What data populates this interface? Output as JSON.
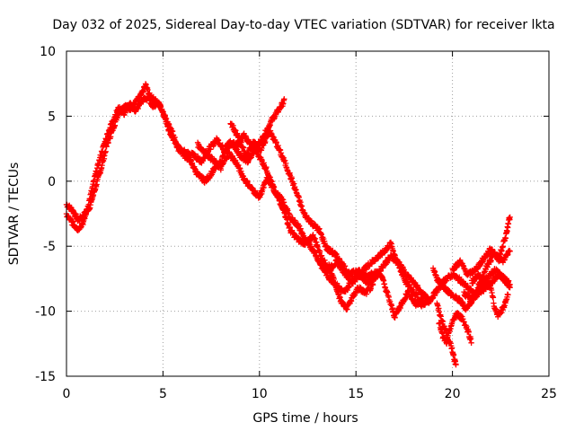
{
  "chart_data": {
    "type": "scatter",
    "title": "Day 032 of 2025, Sidereal Day-to-day VTEC variation (SDTVAR) for receiver lkta",
    "xlabel": "GPS time / hours",
    "ylabel": "SDTVAR / TECUs",
    "xlim": [
      0,
      25
    ],
    "ylim": [
      -15,
      10
    ],
    "xticks": [
      0,
      5,
      10,
      15,
      20,
      25
    ],
    "yticks": [
      -15,
      -10,
      -5,
      0,
      5,
      10
    ],
    "xtick_labels": [
      "0",
      "5",
      "10",
      "15",
      "20",
      "25"
    ],
    "ytick_labels": [
      "-15",
      "-10",
      "-5",
      "0",
      "5",
      "10"
    ],
    "grid": true,
    "marker": "+",
    "color": "#ff0000",
    "series": [
      {
        "name": "satellite tracks",
        "tracks": [
          [
            [
              0.0,
              -1.8
            ],
            [
              0.3,
              -2.2
            ],
            [
              0.6,
              -3.0
            ],
            [
              0.9,
              -2.6
            ],
            [
              1.2,
              -2.0
            ],
            [
              1.5,
              -0.5
            ],
            [
              1.8,
              1.0
            ],
            [
              2.1,
              2.8
            ],
            [
              2.4,
              4.0
            ],
            [
              2.7,
              5.3
            ],
            [
              3.0,
              5.8
            ],
            [
              3.3,
              5.6
            ],
            [
              3.6,
              6.1
            ],
            [
              3.9,
              6.7
            ],
            [
              4.1,
              7.4
            ],
            [
              4.3,
              6.6
            ],
            [
              4.6,
              6.2
            ],
            [
              4.9,
              5.7
            ],
            [
              5.1,
              5.0
            ],
            [
              5.3,
              4.0
            ],
            [
              5.6,
              3.0
            ],
            [
              5.9,
              2.4
            ],
            [
              6.2,
              2.2
            ],
            [
              6.6,
              2.0
            ],
            [
              7.0,
              1.5
            ],
            [
              7.4,
              2.5
            ],
            [
              7.8,
              3.2
            ],
            [
              8.2,
              2.4
            ],
            [
              8.6,
              2.9
            ],
            [
              9.0,
              2.0
            ],
            [
              9.4,
              1.5
            ],
            [
              9.8,
              2.5
            ],
            [
              10.2,
              3.4
            ],
            [
              10.6,
              4.6
            ],
            [
              11.0,
              5.5
            ],
            [
              11.3,
              6.2
            ]
          ],
          [
            [
              0.0,
              -2.6
            ],
            [
              0.3,
              -3.2
            ],
            [
              0.6,
              -3.7
            ],
            [
              0.9,
              -3.1
            ],
            [
              1.2,
              -1.4
            ],
            [
              1.5,
              0.5
            ],
            [
              1.8,
              2.1
            ],
            [
              2.1,
              3.5
            ],
            [
              2.4,
              4.7
            ],
            [
              2.7,
              5.6
            ],
            [
              3.0,
              5.2
            ],
            [
              3.3,
              5.9
            ],
            [
              3.6,
              5.4
            ],
            [
              3.9,
              6.2
            ],
            [
              4.2,
              6.4
            ],
            [
              4.5,
              5.8
            ],
            [
              4.8,
              6.0
            ],
            [
              5.0,
              5.3
            ],
            [
              5.2,
              4.5
            ],
            [
              5.5,
              3.7
            ],
            [
              5.8,
              2.5
            ],
            [
              6.1,
              2.0
            ],
            [
              6.4,
              1.6
            ],
            [
              6.8,
              0.5
            ],
            [
              7.2,
              0.0
            ],
            [
              7.6,
              0.8
            ],
            [
              8.0,
              1.5
            ],
            [
              8.4,
              3.0
            ],
            [
              8.8,
              2.8
            ],
            [
              9.2,
              3.5
            ],
            [
              9.6,
              2.7
            ],
            [
              10.0,
              1.9
            ],
            [
              10.4,
              0.8
            ],
            [
              10.8,
              -0.8
            ],
            [
              11.2,
              -2.0
            ],
            [
              11.6,
              -3.8
            ],
            [
              12.0,
              -4.5
            ],
            [
              12.4,
              -4.8
            ],
            [
              12.8,
              -4.2
            ],
            [
              13.2,
              -5.8
            ],
            [
              13.6,
              -6.8
            ],
            [
              14.0,
              -6.2
            ],
            [
              14.4,
              -7.0
            ],
            [
              14.8,
              -7.8
            ],
            [
              15.2,
              -7.2
            ],
            [
              15.6,
              -6.5
            ],
            [
              16.0,
              -6.0
            ],
            [
              16.4,
              -5.5
            ],
            [
              16.8,
              -4.8
            ],
            [
              17.2,
              -6.5
            ],
            [
              17.6,
              -7.8
            ],
            [
              18.0,
              -8.5
            ],
            [
              18.4,
              -9.5
            ],
            [
              18.8,
              -9.2
            ]
          ],
          [
            [
              6.8,
              2.8
            ],
            [
              7.2,
              2.2
            ],
            [
              7.6,
              1.6
            ],
            [
              8.0,
              1.0
            ],
            [
              8.4,
              2.2
            ],
            [
              8.8,
              1.4
            ],
            [
              9.2,
              0.2
            ],
            [
              9.6,
              -0.6
            ],
            [
              10.0,
              -1.2
            ],
            [
              10.4,
              0.2
            ],
            [
              10.8,
              -0.8
            ],
            [
              11.2,
              -1.5
            ],
            [
              11.6,
              -2.8
            ],
            [
              12.0,
              -3.4
            ],
            [
              12.4,
              -4.6
            ],
            [
              12.8,
              -5.3
            ],
            [
              13.2,
              -6.5
            ],
            [
              13.6,
              -7.4
            ],
            [
              14.0,
              -8.0
            ],
            [
              14.4,
              -8.6
            ],
            [
              14.8,
              -7.6
            ],
            [
              15.2,
              -7.2
            ],
            [
              15.6,
              -7.8
            ],
            [
              16.0,
              -7.4
            ],
            [
              16.4,
              -6.5
            ],
            [
              16.8,
              -5.8
            ],
            [
              17.2,
              -6.2
            ],
            [
              17.6,
              -7.2
            ],
            [
              18.0,
              -7.8
            ],
            [
              18.4,
              -8.6
            ],
            [
              18.8,
              -9.2
            ],
            [
              19.2,
              -8.4
            ],
            [
              19.6,
              -7.6
            ],
            [
              20.0,
              -7.2
            ],
            [
              20.4,
              -7.6
            ],
            [
              20.8,
              -8.2
            ],
            [
              21.2,
              -8.8
            ],
            [
              21.6,
              -8.4
            ],
            [
              22.0,
              -7.8
            ],
            [
              22.4,
              -7.2
            ],
            [
              22.8,
              -7.6
            ],
            [
              23.0,
              -8.0
            ]
          ],
          [
            [
              8.5,
              4.5
            ],
            [
              8.9,
              3.4
            ],
            [
              9.3,
              1.9
            ],
            [
              9.7,
              3.0
            ],
            [
              10.1,
              2.4
            ],
            [
              10.5,
              3.9
            ],
            [
              10.9,
              2.8
            ],
            [
              11.3,
              1.5
            ],
            [
              11.7,
              0.0
            ],
            [
              12.0,
              -1.2
            ],
            [
              12.3,
              -2.5
            ],
            [
              12.7,
              -3.2
            ],
            [
              13.1,
              -3.8
            ],
            [
              13.5,
              -5.2
            ],
            [
              13.9,
              -5.6
            ],
            [
              14.3,
              -6.4
            ],
            [
              14.7,
              -7.2
            ],
            [
              15.1,
              -6.8
            ],
            [
              15.5,
              -7.4
            ],
            [
              15.9,
              -7.0
            ],
            [
              16.3,
              -7.2
            ],
            [
              16.7,
              -9.0
            ],
            [
              17.0,
              -10.4
            ],
            [
              17.3,
              -9.6
            ],
            [
              17.7,
              -8.5
            ],
            [
              18.1,
              -9.5
            ],
            [
              18.5,
              -9.0
            ]
          ],
          [
            [
              13.6,
              -6.5
            ],
            [
              13.9,
              -7.8
            ],
            [
              14.2,
              -9.2
            ],
            [
              14.5,
              -9.8
            ],
            [
              14.8,
              -9.0
            ],
            [
              15.1,
              -8.2
            ],
            [
              15.5,
              -8.6
            ],
            [
              15.9,
              -8.0
            ]
          ],
          [
            [
              19.0,
              -6.8
            ],
            [
              19.2,
              -7.5
            ],
            [
              19.6,
              -8.2
            ],
            [
              20.0,
              -8.8
            ],
            [
              20.4,
              -9.2
            ],
            [
              20.7,
              -9.8
            ],
            [
              21.0,
              -9.2
            ],
            [
              21.4,
              -8.2
            ],
            [
              21.8,
              -7.4
            ],
            [
              22.2,
              -6.8
            ],
            [
              22.6,
              -7.4
            ],
            [
              23.0,
              -8.2
            ]
          ],
          [
            [
              19.2,
              -9.5
            ],
            [
              19.4,
              -10.5
            ],
            [
              19.6,
              -11.3
            ],
            [
              19.8,
              -12.2
            ],
            [
              20.0,
              -13.0
            ],
            [
              20.1,
              -13.7
            ],
            [
              20.2,
              -14.0
            ]
          ],
          [
            [
              19.3,
              -10.8
            ],
            [
              19.5,
              -12.0
            ],
            [
              19.7,
              -12.4
            ],
            [
              19.9,
              -11.2
            ],
            [
              20.2,
              -10.2
            ],
            [
              20.5,
              -10.5
            ],
            [
              20.8,
              -11.5
            ],
            [
              21.0,
              -12.4
            ]
          ],
          [
            [
              20.0,
              -6.8
            ],
            [
              20.4,
              -6.2
            ],
            [
              20.8,
              -7.2
            ],
            [
              21.2,
              -6.8
            ],
            [
              21.6,
              -6.0
            ],
            [
              22.0,
              -5.2
            ],
            [
              22.4,
              -6.0
            ],
            [
              22.6,
              -5.0
            ],
            [
              22.8,
              -4.0
            ],
            [
              22.9,
              -3.2
            ],
            [
              23.0,
              -2.6
            ]
          ],
          [
            [
              21.0,
              -7.8
            ],
            [
              21.3,
              -7.2
            ],
            [
              21.6,
              -7.6
            ],
            [
              22.0,
              -8.2
            ],
            [
              22.2,
              -9.8
            ],
            [
              22.4,
              -10.4
            ],
            [
              22.7,
              -9.5
            ],
            [
              22.9,
              -8.6
            ]
          ],
          [
            [
              20.6,
              -8.6
            ],
            [
              21.0,
              -9.2
            ],
            [
              21.4,
              -8.0
            ],
            [
              21.8,
              -6.5
            ],
            [
              22.2,
              -5.5
            ],
            [
              22.6,
              -6.2
            ],
            [
              23.0,
              -5.2
            ]
          ]
        ]
      }
    ]
  }
}
